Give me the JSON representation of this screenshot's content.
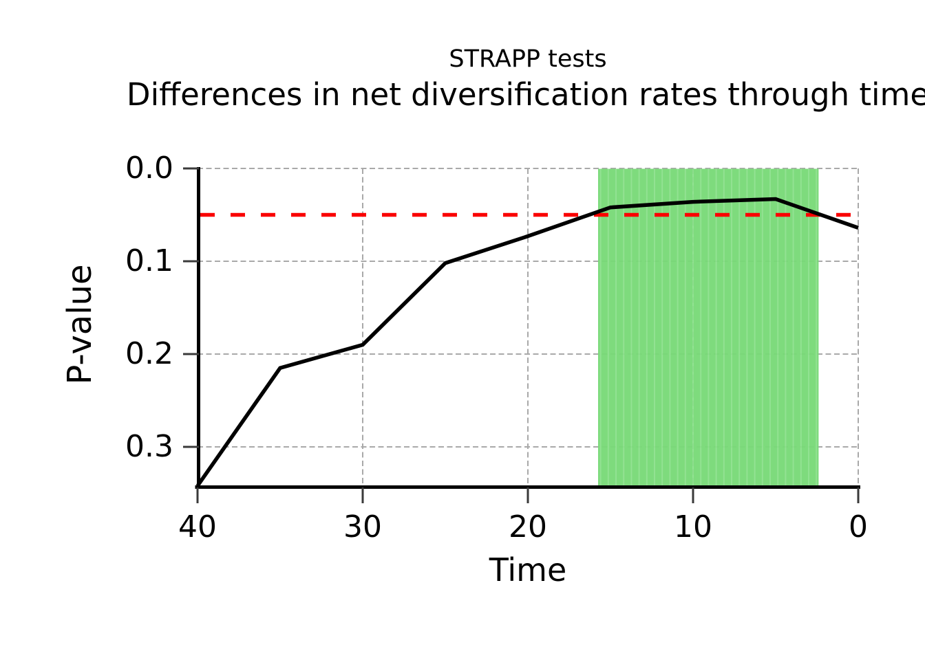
{
  "chart_data": {
    "type": "line",
    "title": "STRAPP tests",
    "subtitle": "Differences in net diversification rates through time",
    "xlabel": "Time",
    "ylabel": "P-value",
    "x_axis": {
      "ticks": [
        40,
        30,
        20,
        10,
        0
      ],
      "tick_labels": [
        "40",
        "30",
        "20",
        "10",
        "0"
      ],
      "range": [
        40,
        0
      ],
      "reversed": true
    },
    "y_axis": {
      "ticks": [
        0.0,
        0.1,
        0.2,
        0.3
      ],
      "tick_labels": [
        "0.0",
        "0.1",
        "0.2",
        "0.3"
      ],
      "range": [
        0.0,
        0.342
      ],
      "inverted": true
    },
    "grid": true,
    "legend": "none",
    "series": [
      {
        "name": "p-value",
        "x": [
          40,
          35,
          30,
          25,
          20,
          15,
          10,
          5,
          0
        ],
        "y": [
          0.342,
          0.215,
          0.19,
          0.102,
          0.073,
          0.042,
          0.036,
          0.033,
          0.064
        ]
      }
    ],
    "threshold_line": {
      "value": 0.05,
      "style": "dashed",
      "color": "#fa0000"
    },
    "significant_region": {
      "t_start": 15.75,
      "t_end": 2.4
    },
    "colors": {
      "line": "#000000",
      "grid": "#a9a9a9",
      "threshold": "#fa0000",
      "region_fill": "#77d976",
      "region_stripe": "#8ce08c",
      "spine": "#000000",
      "tick": "#3a3a3a",
      "text": "#000000"
    }
  }
}
